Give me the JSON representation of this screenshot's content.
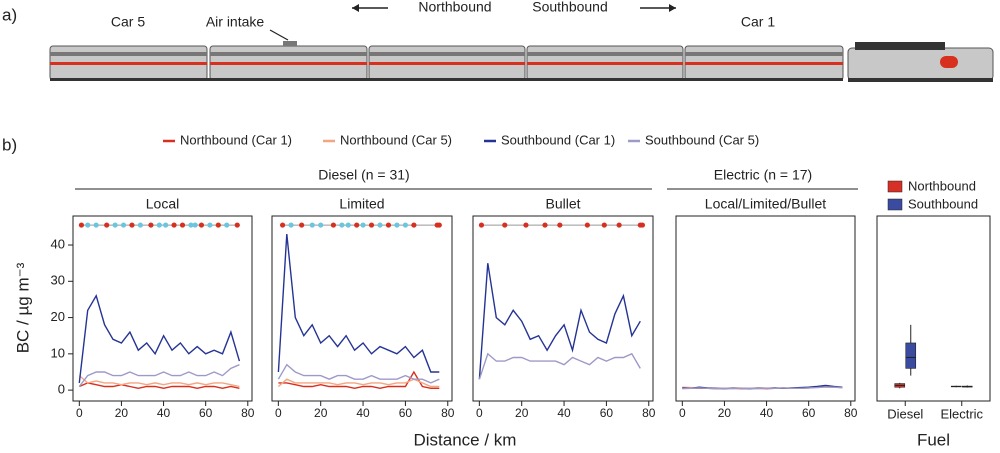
{
  "figure": {
    "panel_a": {
      "label": "a)",
      "car5": "Car 5",
      "air_intake": "Air intake",
      "northbound": "Northbound",
      "southbound": "Southbound",
      "car1": "Car 1"
    },
    "panel_b": {
      "label": "b)",
      "groups": [
        "Diesel (n = 31)",
        "Electric (n = 17)"
      ],
      "y_label": "BC / µg m⁻³",
      "x_label": "Distance / km"
    }
  },
  "chart_data": [
    {
      "type": "line",
      "title": "Local",
      "xlim": [
        -3,
        82
      ],
      "xticks": [
        0,
        20,
        40,
        60,
        80
      ],
      "ylim": [
        -3,
        48
      ],
      "yticks": [
        0,
        10,
        20,
        30,
        40
      ],
      "x": [
        0,
        4,
        8,
        12,
        16,
        20,
        24,
        28,
        32,
        36,
        40,
        44,
        48,
        52,
        56,
        60,
        64,
        68,
        72,
        76
      ],
      "stops_y": 45.5,
      "stops": [
        {
          "color": "#d7301f",
          "x": [
            1,
            13,
            25,
            34,
            45,
            49,
            58,
            66,
            75
          ]
        },
        {
          "color": "#6cc5de",
          "x": [
            4,
            8,
            17,
            21,
            29,
            38,
            41,
            53,
            55,
            62,
            70
          ]
        }
      ],
      "series": [
        {
          "name": "Northbound (Car 1)",
          "color": "#d7301f",
          "values": [
            1,
            2,
            1.5,
            1,
            1,
            1.5,
            1,
            0.5,
            1,
            1,
            0.5,
            1,
            1,
            1,
            0.5,
            1,
            1,
            0.5,
            1,
            0.5
          ]
        },
        {
          "name": "Northbound (Car 5)",
          "color": "#f4a582",
          "values": [
            4,
            2,
            2.5,
            2,
            2,
            1.5,
            2,
            2,
            1.5,
            2,
            1.5,
            2,
            2,
            1.5,
            2,
            1.5,
            2,
            2,
            1.5,
            1
          ]
        },
        {
          "name": "Southbound (Car 1)",
          "color": "#253494",
          "values": [
            2,
            22,
            26,
            18,
            14,
            13,
            16,
            11,
            13,
            10,
            15,
            11,
            13,
            10,
            12,
            10,
            11,
            10,
            16,
            8
          ]
        },
        {
          "name": "Southbound (Car 5)",
          "color": "#9e9ac8",
          "values": [
            1,
            4,
            5,
            5,
            4,
            4,
            5,
            4,
            4,
            4,
            5,
            4,
            4,
            5,
            4,
            4,
            5,
            4,
            6,
            7
          ]
        }
      ]
    },
    {
      "type": "line",
      "title": "Limited",
      "xlim": [
        -3,
        82
      ],
      "xticks": [
        0,
        20,
        40,
        60,
        80
      ],
      "ylim": [
        -3,
        48
      ],
      "x": [
        0,
        4,
        8,
        12,
        16,
        20,
        24,
        28,
        32,
        36,
        40,
        44,
        48,
        52,
        56,
        60,
        64,
        68,
        72,
        76
      ],
      "stops_y": 45.5,
      "stops": [
        {
          "color": "#d7301f",
          "x": [
            2,
            11,
            26,
            37,
            44,
            52,
            64,
            75,
            76
          ]
        },
        {
          "color": "#6cc5de",
          "x": [
            6,
            16,
            20,
            30,
            33,
            40,
            48,
            56,
            60
          ]
        }
      ],
      "series": [
        {
          "name": "Northbound (Car 1)",
          "color": "#d7301f",
          "values": [
            2,
            2,
            1.5,
            1,
            1,
            1.5,
            1,
            1,
            1,
            0.5,
            1,
            1,
            0.5,
            1,
            1,
            1,
            5,
            1,
            0.5,
            0.5
          ]
        },
        {
          "name": "Northbound (Car 5)",
          "color": "#f4a582",
          "values": [
            1,
            3,
            2,
            2,
            2,
            2,
            2,
            1.5,
            2,
            2,
            1.5,
            2,
            2,
            1.5,
            2,
            2,
            3,
            2,
            1,
            1
          ]
        },
        {
          "name": "Southbound (Car 1)",
          "color": "#253494",
          "values": [
            5,
            43,
            20,
            15,
            18,
            13,
            15,
            12,
            15,
            11,
            13,
            10,
            12,
            11,
            10,
            12,
            9,
            11,
            5,
            5
          ]
        },
        {
          "name": "Southbound (Car 5)",
          "color": "#9e9ac8",
          "values": [
            3,
            7,
            5,
            4,
            4,
            4,
            3,
            4,
            4,
            3,
            3,
            4,
            3,
            3,
            3,
            4,
            3,
            3,
            2,
            3
          ]
        }
      ]
    },
    {
      "type": "line",
      "title": "Bullet",
      "xlim": [
        -3,
        82
      ],
      "xticks": [
        0,
        20,
        40,
        60,
        80
      ],
      "ylim": [
        -3,
        48
      ],
      "x": [
        0,
        4,
        8,
        12,
        16,
        20,
        24,
        28,
        32,
        36,
        40,
        44,
        48,
        52,
        56,
        60,
        64,
        68,
        72,
        76
      ],
      "stops_y": 45.5,
      "stops": [
        {
          "color": "#d7301f",
          "x": [
            1,
            12,
            22,
            31,
            38,
            51,
            59,
            66,
            76,
            77
          ]
        }
      ],
      "series": [
        {
          "name": "Southbound (Car 1)",
          "color": "#253494",
          "values": [
            3,
            35,
            20,
            18,
            22,
            19,
            14,
            15,
            11,
            15,
            18,
            11,
            22,
            16,
            14,
            13,
            21,
            26,
            15,
            19
          ]
        },
        {
          "name": "Southbound (Car 5)",
          "color": "#9e9ac8",
          "values": [
            3,
            10,
            8,
            8,
            9,
            9,
            8,
            8,
            8,
            8,
            7,
            9,
            8,
            7,
            9,
            8,
            9,
            9,
            10,
            6
          ]
        }
      ]
    },
    {
      "type": "line",
      "title": "Local/Limited/Bullet",
      "xlim": [
        -3,
        82
      ],
      "xticks": [
        0,
        20,
        40,
        60,
        80
      ],
      "ylim": [
        -3,
        48
      ],
      "x": [
        0,
        4,
        8,
        12,
        16,
        20,
        24,
        28,
        32,
        36,
        40,
        44,
        48,
        52,
        56,
        60,
        64,
        68,
        72,
        76
      ],
      "series": [
        {
          "name": "Northbound (Car 1)",
          "color": "#d7301f",
          "values": [
            0.5,
            0.6,
            0.5,
            0.5,
            0.4,
            0.5,
            0.5,
            0.4,
            0.5,
            0.5,
            0.4,
            0.5,
            0.6,
            0.5,
            0.5,
            0.6,
            0.8,
            1,
            0.8,
            0.7
          ]
        },
        {
          "name": "Northbound (Car 5)",
          "color": "#f4a582",
          "values": [
            0.8,
            0.7,
            0.6,
            0.6,
            0.5,
            0.5,
            0.6,
            0.5,
            0.5,
            0.6,
            0.5,
            0.6,
            0.5,
            0.6,
            0.6,
            0.7,
            0.8,
            0.9,
            0.8,
            0.7
          ]
        },
        {
          "name": "Southbound (Car 1)",
          "color": "#253494",
          "values": [
            0.6,
            0.5,
            0.8,
            0.6,
            0.5,
            0.4,
            0.5,
            0.5,
            0.4,
            0.5,
            0.5,
            0.6,
            0.5,
            0.6,
            0.7,
            0.8,
            1,
            1.3,
            1,
            0.8
          ]
        },
        {
          "name": "Southbound (Car 5)",
          "color": "#9e9ac8",
          "values": [
            0.4,
            0.5,
            0.6,
            0.5,
            0.4,
            0.5,
            0.4,
            0.5,
            0.5,
            0.4,
            0.5,
            0.5,
            0.6,
            0.5,
            0.5,
            0.6,
            0.7,
            0.9,
            0.8,
            0.7
          ]
        }
      ]
    },
    {
      "type": "box",
      "x_label": "Fuel",
      "categories": [
        "Diesel",
        "Electric"
      ],
      "ylim": [
        -3,
        48
      ],
      "series": [
        {
          "name": "Northbound",
          "color": "#d73027",
          "values": [
            {
              "min": 0.5,
              "q1": 0.8,
              "median": 1.3,
              "q3": 1.8,
              "max": 2
            },
            {
              "min": 0.8,
              "q1": 0.9,
              "median": 1,
              "q3": 1.1,
              "max": 1.2
            }
          ]
        },
        {
          "name": "Southbound",
          "color": "#3a4ba0",
          "values": [
            {
              "min": 4,
              "q1": 6,
              "median": 9,
              "q3": 13,
              "max": 18
            },
            {
              "min": 0.7,
              "q1": 0.85,
              "median": 0.95,
              "q3": 1.1,
              "max": 1.3
            }
          ]
        }
      ]
    }
  ]
}
